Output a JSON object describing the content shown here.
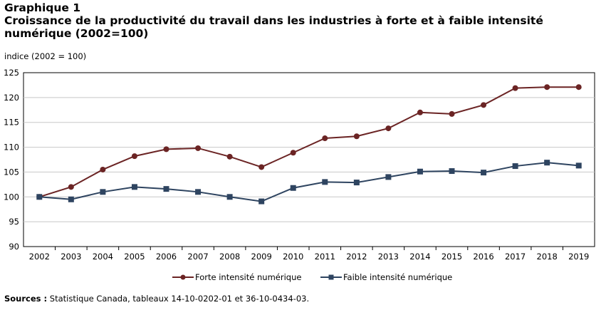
{
  "header": {
    "title_line1": "Graphique 1",
    "title_line2": "Croissance de la productivité du travail dans les industries à forte et à faible intensité numérique (2002=100)"
  },
  "chart_data": {
    "type": "line",
    "ylabel": "indice (2002 = 100)",
    "x": [
      "2002",
      "2003",
      "2004",
      "2005",
      "2006",
      "2007",
      "2008",
      "2009",
      "2010",
      "2011",
      "2012",
      "2013",
      "2014",
      "2015",
      "2016",
      "2017",
      "2018",
      "2019"
    ],
    "ylim": [
      90,
      125
    ],
    "yticks": [
      "90",
      "95",
      "100",
      "105",
      "110",
      "115",
      "120",
      "125"
    ],
    "grid": true,
    "legend_position": "bottom",
    "series": [
      {
        "name": "Forte intensité numérique",
        "color": "#6b2424",
        "marker": "circle",
        "values": [
          100.0,
          102.0,
          105.5,
          108.2,
          109.6,
          109.8,
          108.1,
          106.0,
          108.9,
          111.8,
          112.2,
          113.8,
          117.0,
          116.7,
          118.5,
          121.9,
          122.1,
          122.1
        ]
      },
      {
        "name": "Faible intensité numérique",
        "color": "#2e4460",
        "marker": "square",
        "values": [
          100.0,
          99.5,
          101.0,
          102.0,
          101.6,
          101.0,
          100.0,
          99.1,
          101.8,
          103.0,
          102.9,
          104.0,
          105.1,
          105.2,
          104.9,
          106.2,
          106.9,
          106.3
        ]
      }
    ]
  },
  "footer": {
    "source_label": "Sources :",
    "source_text": "Statistique Canada, tableaux 14-10-0202-01 et 36-10-0434-03."
  }
}
